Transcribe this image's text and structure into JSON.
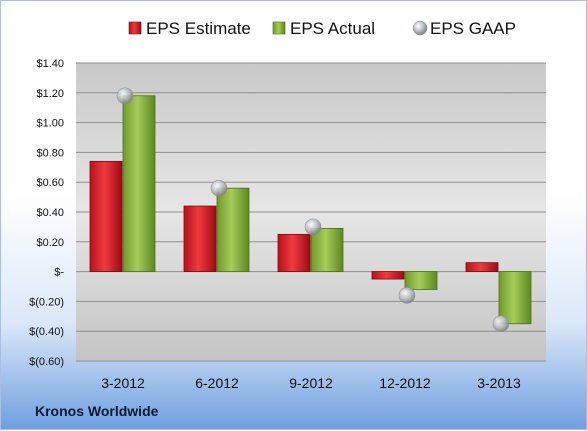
{
  "company": "Kronos Worldwide",
  "chart_data": {
    "type": "bar",
    "categories": [
      "3-2012",
      "6-2012",
      "9-2012",
      "12-2012",
      "3-2013"
    ],
    "series": [
      {
        "name": "EPS Estimate",
        "kind": "bar",
        "color": "#d8202a",
        "values": [
          0.74,
          0.44,
          0.25,
          -0.05,
          0.06
        ]
      },
      {
        "name": "EPS Actual",
        "kind": "bar",
        "color": "#8db640",
        "values": [
          1.18,
          0.56,
          0.29,
          -0.12,
          -0.35
        ]
      },
      {
        "name": "EPS GAAP",
        "kind": "marker",
        "color": "#b8bcc0",
        "values": [
          1.18,
          0.56,
          0.3,
          -0.16,
          -0.35
        ]
      }
    ],
    "yticks": [
      "$1.40",
      "$1.20",
      "$1.00",
      "$0.80",
      "$0.60",
      "$0.40",
      "$0.20",
      "$-",
      "$(0.20)",
      "$(0.40)",
      "$(0.60)"
    ],
    "ylim": [
      -0.6,
      1.4
    ],
    "legend_position": "top",
    "grid": true
  }
}
